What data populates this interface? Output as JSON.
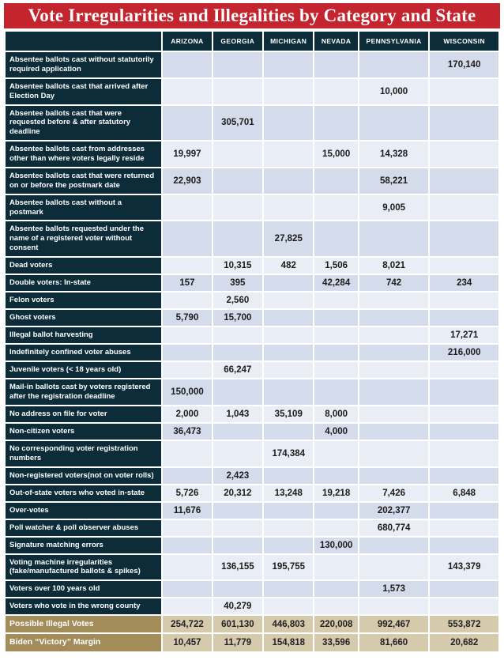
{
  "title": "Vote Irregularities and Illegalities by Category and State",
  "colors": {
    "title_bar_red": "#c4242e",
    "header_navy": "#0d2c3a",
    "row_stripe_dark": "#d4dcec",
    "row_stripe_light": "#e9edf6",
    "summary_label_tan": "#a28c5a",
    "summary_cell_tan": "#d6caad",
    "number_text": "#1b1b1b",
    "gridline_white": "#ffffff"
  },
  "chart_data": {
    "type": "table",
    "title": "Vote Irregularities and Illegalities by Category and State",
    "state_columns": [
      "ARIZONA",
      "GEORGIA",
      "MICHIGAN",
      "NEVADA",
      "PENNSYLVANIA",
      "WISCONSIN"
    ],
    "rows": [
      {
        "label": "Absentee ballots cast without statutorily required application",
        "values": [
          "",
          "",
          "",
          "",
          "",
          "170,140"
        ]
      },
      {
        "label": "Absentee ballots cast that arrived after Election Day",
        "values": [
          "",
          "",
          "",
          "",
          "10,000",
          ""
        ]
      },
      {
        "label": "Absentee ballots cast that were requested before & after statutory deadline",
        "values": [
          "",
          "305,701",
          "",
          "",
          "",
          ""
        ]
      },
      {
        "label": "Absentee ballots cast from addresses other than where voters legally reside",
        "values": [
          "19,997",
          "",
          "",
          "15,000",
          "14,328",
          ""
        ]
      },
      {
        "label": "Absentee ballots cast that were returned on or before the postmark date",
        "values": [
          "22,903",
          "",
          "",
          "",
          "58,221",
          ""
        ]
      },
      {
        "label": "Absentee ballots cast without a postmark",
        "values": [
          "",
          "",
          "",
          "",
          "9,005",
          ""
        ]
      },
      {
        "label": "Absentee ballots requested under the name of a registered voter without consent",
        "values": [
          "",
          "",
          "27,825",
          "",
          "",
          ""
        ]
      },
      {
        "label": "Dead voters",
        "values": [
          "",
          "10,315",
          "482",
          "1,506",
          "8,021",
          ""
        ]
      },
      {
        "label": "Double voters: In-state",
        "values": [
          "157",
          "395",
          "",
          "42,284",
          "742",
          "234"
        ]
      },
      {
        "label": "Felon voters",
        "values": [
          "",
          "2,560",
          "",
          "",
          "",
          ""
        ]
      },
      {
        "label": "Ghost voters",
        "values": [
          "5,790",
          "15,700",
          "",
          "",
          "",
          ""
        ]
      },
      {
        "label": "Illegal ballot harvesting",
        "values": [
          "",
          "",
          "",
          "",
          "",
          "17,271"
        ]
      },
      {
        "label": "Indefinitely confined voter abuses",
        "values": [
          "",
          "",
          "",
          "",
          "",
          "216,000"
        ]
      },
      {
        "label": "Juvenile voters (< 18 years old)",
        "values": [
          "",
          "66,247",
          "",
          "",
          "",
          ""
        ]
      },
      {
        "label": "Mail-in ballots cast by voters registered after the registration deadline",
        "values": [
          "150,000",
          "",
          "",
          "",
          "",
          ""
        ]
      },
      {
        "label": "No address on file for voter",
        "values": [
          "2,000",
          "1,043",
          "35,109",
          "8,000",
          "",
          ""
        ]
      },
      {
        "label": "Non-citizen voters",
        "values": [
          "36,473",
          "",
          "",
          "4,000",
          "",
          ""
        ]
      },
      {
        "label": "No corresponding voter registration numbers",
        "values": [
          "",
          "",
          "174,384",
          "",
          "",
          ""
        ]
      },
      {
        "label": "Non-registered voters(not on voter rolls)",
        "values": [
          "",
          "2,423",
          "",
          "",
          "",
          ""
        ]
      },
      {
        "label": "Out-of-state voters who voted in-state",
        "values": [
          "5,726",
          "20,312",
          "13,248",
          "19,218",
          "7,426",
          "6,848"
        ]
      },
      {
        "label": "Over-votes",
        "values": [
          "11,676",
          "",
          "",
          "",
          "202,377",
          ""
        ]
      },
      {
        "label": "Poll watcher & poll observer abuses",
        "values": [
          "",
          "",
          "",
          "",
          "680,774",
          ""
        ]
      },
      {
        "label": "Signature matching errors",
        "values": [
          "",
          "",
          "",
          "130,000",
          "",
          ""
        ]
      },
      {
        "label": "Voting machine irregularities (fake/manufactured ballots & spikes)",
        "values": [
          "",
          "136,155",
          "195,755",
          "",
          "",
          "143,379"
        ]
      },
      {
        "label": "Voters over 100 years old",
        "values": [
          "",
          "",
          "",
          "",
          "1,573",
          ""
        ]
      },
      {
        "label": "Voters who vote in the wrong county",
        "values": [
          "",
          "40,279",
          "",
          "",
          "",
          ""
        ]
      }
    ],
    "summary_rows": [
      {
        "label": "Possible Illegal Votes",
        "values": [
          "254,722",
          "601,130",
          "446,803",
          "220,008",
          "992,467",
          "553,872"
        ]
      },
      {
        "label": "Biden “Victory” Margin",
        "values": [
          "10,457",
          "11,779",
          "154,818",
          "33,596",
          "81,660",
          "20,682"
        ]
      }
    ]
  }
}
